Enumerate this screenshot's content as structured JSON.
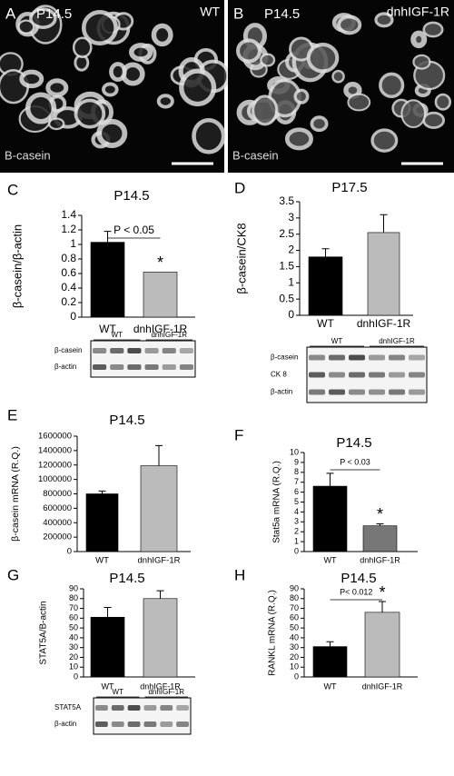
{
  "images": [
    {
      "panel": "A",
      "title": "P14.5",
      "genotype": "WT",
      "stain": "B-casein"
    },
    {
      "panel": "B",
      "title": "P14.5",
      "genotype": "dnhIGF-1R",
      "stain": "B-casein"
    }
  ],
  "blots": [
    {
      "columns": [
        "WT",
        "dnhIGF-1R"
      ],
      "rows": [
        "β-casein",
        "β-actin"
      ]
    },
    {
      "columns": [
        "WT",
        "dnhIGF-1R"
      ],
      "rows": [
        "β-casein",
        "CK 8",
        "β-actin"
      ]
    },
    {
      "columns": [
        "WT",
        "dnhIGF-1R"
      ],
      "rows": [
        "STAT5A",
        "β-actin"
      ]
    }
  ],
  "chart_data": [
    {
      "type": "bar",
      "panel": "C",
      "title": "P14.5",
      "y_label": "β-casein/β-actin",
      "categories": [
        "WT",
        "dnhIGF-1R"
      ],
      "values": [
        1.03,
        0.62
      ],
      "errors": [
        0.15,
        0
      ],
      "colors": [
        "#000000",
        "#bbbbbb"
      ],
      "ylim": [
        0,
        1.4
      ],
      "yticks": [
        0,
        0.2,
        0.4,
        0.6,
        0.8,
        1,
        1.2,
        1.4
      ],
      "annotation": "P < 0.05",
      "significance": "*"
    },
    {
      "type": "bar",
      "panel": "D",
      "title": "P17.5",
      "y_label": "β-casein/CK8",
      "categories": [
        "WT",
        "dnhIGF-1R"
      ],
      "values": [
        1.8,
        2.55
      ],
      "errors": [
        0.25,
        0.55
      ],
      "colors": [
        "#000000",
        "#bbbbbb"
      ],
      "ylim": [
        0,
        3.5
      ],
      "yticks": [
        0,
        0.5,
        1,
        1.5,
        2,
        2.5,
        3,
        3.5
      ]
    },
    {
      "type": "bar",
      "panel": "E",
      "title": "P14.5",
      "y_label": "β-casein mRNA (R.Q.)",
      "categories": [
        "WT",
        "dnhIGF-1R"
      ],
      "values": [
        800000,
        1190000
      ],
      "errors": [
        40000,
        280000
      ],
      "colors": [
        "#000000",
        "#bbbbbb"
      ],
      "ylim": [
        0,
        1600000
      ],
      "yticks": [
        0,
        200000,
        400000,
        600000,
        800000,
        1000000,
        1200000,
        1400000,
        1600000
      ]
    },
    {
      "type": "bar",
      "panel": "F",
      "title": "P14.5",
      "y_label": "Stat5a mRNA (R.Q.)",
      "categories": [
        "WT",
        "dnhIGF-1R"
      ],
      "values": [
        6.6,
        2.6
      ],
      "errors": [
        1.3,
        0.2
      ],
      "colors": [
        "#000000",
        "#777777"
      ],
      "ylim": [
        0,
        10
      ],
      "yticks": [
        0,
        1,
        2,
        3,
        4,
        5,
        6,
        7,
        8,
        9,
        10
      ],
      "annotation": "P < 0.03",
      "significance": "*"
    },
    {
      "type": "bar",
      "panel": "G",
      "title": "P14.5",
      "y_label": "STAT5A/B-actin",
      "categories": [
        "WT",
        "dnhIGF-1R"
      ],
      "values": [
        61,
        80
      ],
      "errors": [
        10,
        8
      ],
      "colors": [
        "#000000",
        "#bbbbbb"
      ],
      "ylim": [
        0,
        90
      ],
      "yticks": [
        0,
        10,
        20,
        30,
        40,
        50,
        60,
        70,
        80,
        90
      ]
    },
    {
      "type": "bar",
      "panel": "H",
      "title": "P14.5",
      "y_label": "RANKL mRNA (R.Q.)",
      "categories": [
        "WT",
        "dnhIGF-1R"
      ],
      "values": [
        31,
        66
      ],
      "errors": [
        5,
        11
      ],
      "colors": [
        "#000000",
        "#bbbbbb"
      ],
      "ylim": [
        0,
        90
      ],
      "yticks": [
        0,
        10,
        20,
        30,
        40,
        50,
        60,
        70,
        80,
        90
      ],
      "annotation": "P< 0.012",
      "significance": "*"
    }
  ]
}
